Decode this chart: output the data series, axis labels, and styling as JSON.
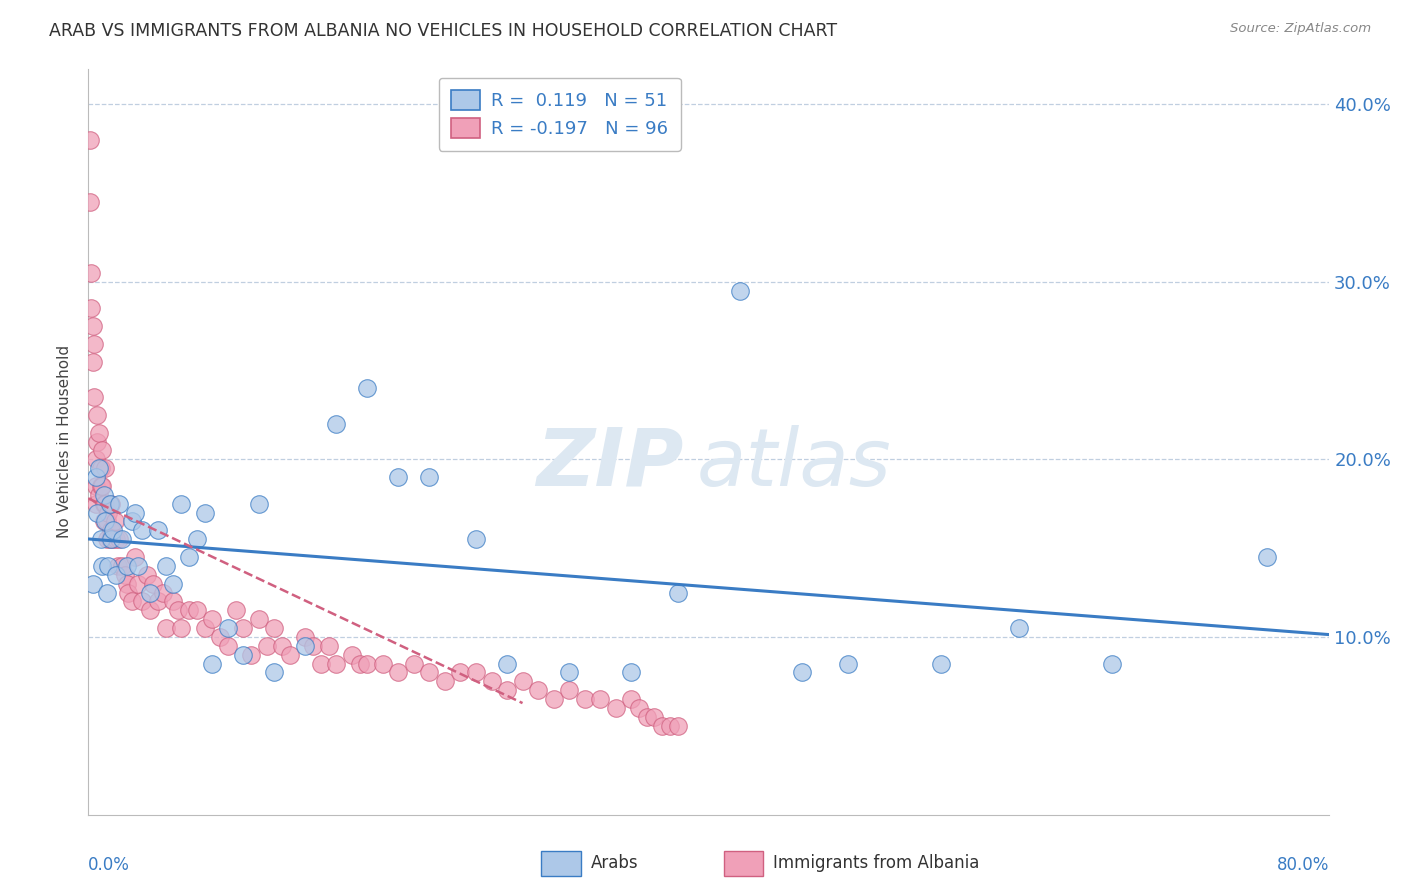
{
  "title": "ARAB VS IMMIGRANTS FROM ALBANIA NO VEHICLES IN HOUSEHOLD CORRELATION CHART",
  "source": "Source: ZipAtlas.com",
  "ylabel": "No Vehicles in Household",
  "yticks": [
    0.0,
    0.1,
    0.2,
    0.3,
    0.4
  ],
  "ytick_labels": [
    "",
    "10.0%",
    "20.0%",
    "30.0%",
    "40.0%"
  ],
  "xlim": [
    0.0,
    0.8
  ],
  "ylim": [
    0.0,
    0.42
  ],
  "r_arab": 0.119,
  "n_arab": 51,
  "r_albania": -0.197,
  "n_albania": 96,
  "legend_label_arab": "Arabs",
  "legend_label_albania": "Immigrants from Albania",
  "color_arab": "#adc8e8",
  "color_albania": "#f0a0b8",
  "color_arab_line": "#3a7cc4",
  "color_albania_line": "#d06080",
  "watermark_zip": "ZIP",
  "watermark_atlas": "atlas",
  "background_color": "#ffffff",
  "arab_x": [
    0.003,
    0.005,
    0.006,
    0.007,
    0.008,
    0.009,
    0.01,
    0.011,
    0.012,
    0.013,
    0.014,
    0.015,
    0.016,
    0.018,
    0.02,
    0.022,
    0.025,
    0.028,
    0.03,
    0.032,
    0.035,
    0.04,
    0.045,
    0.05,
    0.055,
    0.06,
    0.065,
    0.07,
    0.075,
    0.08,
    0.09,
    0.1,
    0.11,
    0.12,
    0.14,
    0.16,
    0.18,
    0.2,
    0.22,
    0.25,
    0.27,
    0.31,
    0.35,
    0.38,
    0.42,
    0.46,
    0.49,
    0.55,
    0.6,
    0.66,
    0.76
  ],
  "arab_y": [
    0.13,
    0.19,
    0.17,
    0.195,
    0.155,
    0.14,
    0.18,
    0.165,
    0.125,
    0.14,
    0.175,
    0.155,
    0.16,
    0.135,
    0.175,
    0.155,
    0.14,
    0.165,
    0.17,
    0.14,
    0.16,
    0.125,
    0.16,
    0.14,
    0.13,
    0.175,
    0.145,
    0.155,
    0.17,
    0.085,
    0.105,
    0.09,
    0.175,
    0.08,
    0.095,
    0.22,
    0.24,
    0.19,
    0.19,
    0.155,
    0.085,
    0.08,
    0.08,
    0.125,
    0.295,
    0.08,
    0.085,
    0.085,
    0.105,
    0.085,
    0.145
  ],
  "albania_x": [
    0.001,
    0.001,
    0.002,
    0.002,
    0.003,
    0.003,
    0.004,
    0.004,
    0.005,
    0.005,
    0.005,
    0.006,
    0.006,
    0.007,
    0.007,
    0.008,
    0.008,
    0.009,
    0.009,
    0.01,
    0.01,
    0.011,
    0.011,
    0.012,
    0.012,
    0.013,
    0.014,
    0.015,
    0.015,
    0.016,
    0.017,
    0.018,
    0.019,
    0.02,
    0.022,
    0.024,
    0.025,
    0.026,
    0.028,
    0.03,
    0.032,
    0.035,
    0.038,
    0.04,
    0.042,
    0.045,
    0.048,
    0.05,
    0.055,
    0.058,
    0.06,
    0.065,
    0.07,
    0.075,
    0.08,
    0.085,
    0.09,
    0.095,
    0.1,
    0.105,
    0.11,
    0.115,
    0.12,
    0.125,
    0.13,
    0.14,
    0.145,
    0.15,
    0.155,
    0.16,
    0.17,
    0.175,
    0.18,
    0.19,
    0.2,
    0.21,
    0.22,
    0.23,
    0.24,
    0.25,
    0.26,
    0.27,
    0.28,
    0.29,
    0.3,
    0.31,
    0.32,
    0.33,
    0.34,
    0.35,
    0.355,
    0.36,
    0.365,
    0.37,
    0.375,
    0.38
  ],
  "albania_y": [
    0.38,
    0.345,
    0.305,
    0.285,
    0.275,
    0.255,
    0.265,
    0.235,
    0.2,
    0.185,
    0.175,
    0.225,
    0.21,
    0.215,
    0.18,
    0.195,
    0.185,
    0.205,
    0.185,
    0.175,
    0.165,
    0.195,
    0.175,
    0.165,
    0.155,
    0.17,
    0.155,
    0.175,
    0.16,
    0.155,
    0.165,
    0.155,
    0.14,
    0.155,
    0.14,
    0.135,
    0.13,
    0.125,
    0.12,
    0.145,
    0.13,
    0.12,
    0.135,
    0.115,
    0.13,
    0.12,
    0.125,
    0.105,
    0.12,
    0.115,
    0.105,
    0.115,
    0.115,
    0.105,
    0.11,
    0.1,
    0.095,
    0.115,
    0.105,
    0.09,
    0.11,
    0.095,
    0.105,
    0.095,
    0.09,
    0.1,
    0.095,
    0.085,
    0.095,
    0.085,
    0.09,
    0.085,
    0.085,
    0.085,
    0.08,
    0.085,
    0.08,
    0.075,
    0.08,
    0.08,
    0.075,
    0.07,
    0.075,
    0.07,
    0.065,
    0.07,
    0.065,
    0.065,
    0.06,
    0.065,
    0.06,
    0.055,
    0.055,
    0.05,
    0.05,
    0.05
  ]
}
